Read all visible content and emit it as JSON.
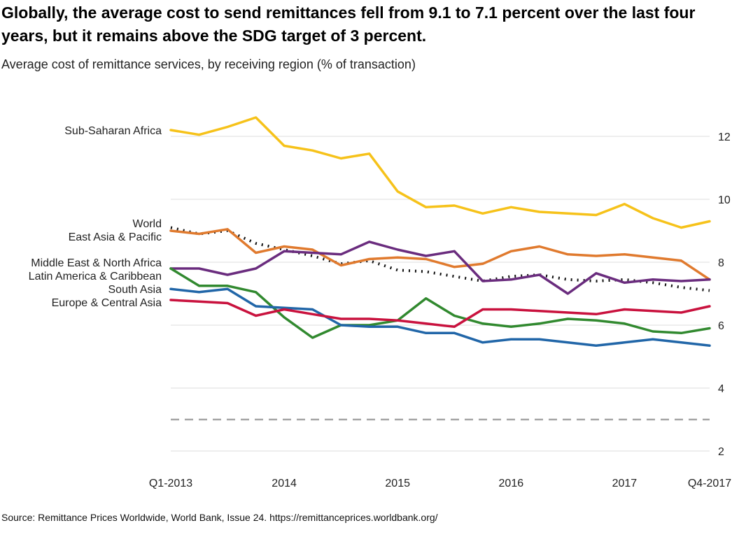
{
  "title": "Globally, the average cost to send remittances fell from 9.1 to 7.1 percent over the last four years, but it remains above the SDG target of 3 percent.",
  "subtitle": "Average cost of remittance services, by receiving region (% of transaction)",
  "source": "Source: Remittance Prices Worldwide, World Bank, Issue 24. https://remittanceprices.worldbank.org/",
  "chart_data": {
    "type": "line",
    "grid": "horizontal",
    "y_axis_position": "right",
    "ylim": [
      2,
      13
    ],
    "yticks": [
      2,
      4,
      6,
      8,
      10,
      12
    ],
    "x": [
      "Q1-2013",
      "Q2-2013",
      "Q3-2013",
      "Q4-2013",
      "Q1-2014",
      "Q2-2014",
      "Q3-2014",
      "Q4-2014",
      "Q1-2015",
      "Q2-2015",
      "Q3-2015",
      "Q4-2015",
      "Q1-2016",
      "Q2-2016",
      "Q3-2016",
      "Q4-2016",
      "Q1-2017",
      "Q2-2017",
      "Q3-2017",
      "Q4-2017"
    ],
    "xtick_labels": [
      {
        "index": 0,
        "label": "Q1-2013"
      },
      {
        "index": 4,
        "label": "2014"
      },
      {
        "index": 8,
        "label": "2015"
      },
      {
        "index": 12,
        "label": "2016"
      },
      {
        "index": 16,
        "label": "2017"
      },
      {
        "index": 19,
        "label": "Q4-2017"
      }
    ],
    "series": [
      {
        "name": "Sub-Saharan Africa",
        "color": "#F6C21A",
        "style": "solid",
        "values": [
          12.2,
          12.05,
          12.3,
          12.6,
          11.7,
          11.55,
          11.3,
          11.45,
          10.25,
          9.75,
          9.8,
          9.55,
          9.75,
          9.6,
          9.55,
          9.5,
          9.85,
          9.4,
          9.1,
          9.3
        ]
      },
      {
        "name": "World",
        "color": "#111111",
        "style": "dotted",
        "values": [
          9.1,
          8.9,
          9.0,
          8.6,
          8.4,
          8.2,
          7.95,
          8.05,
          7.75,
          7.7,
          7.55,
          7.4,
          7.55,
          7.6,
          7.45,
          7.4,
          7.45,
          7.35,
          7.2,
          7.1
        ]
      },
      {
        "name": "East Asia & Pacific",
        "color": "#E07A2E",
        "style": "solid",
        "values": [
          9.0,
          8.9,
          9.05,
          8.3,
          8.5,
          8.4,
          7.9,
          8.1,
          8.15,
          8.1,
          7.85,
          7.95,
          8.35,
          8.5,
          8.25,
          8.2,
          8.25,
          8.15,
          8.05,
          7.45
        ]
      },
      {
        "name": "Middle East & North Africa",
        "color": "#6A2C7E",
        "style": "solid",
        "values": [
          7.8,
          7.8,
          7.6,
          7.8,
          8.35,
          8.3,
          8.25,
          8.65,
          8.4,
          8.2,
          8.35,
          7.4,
          7.45,
          7.6,
          7.0,
          7.65,
          7.35,
          7.45,
          7.4,
          7.45
        ]
      },
      {
        "name": "Latin America & Caribbean",
        "color": "#31892F",
        "style": "solid",
        "values": [
          7.8,
          7.25,
          7.25,
          7.05,
          6.25,
          5.6,
          6.0,
          6.0,
          6.15,
          6.85,
          6.3,
          6.05,
          5.95,
          6.05,
          6.2,
          6.15,
          6.05,
          5.8,
          5.75,
          5.9
        ]
      },
      {
        "name": "South Asia",
        "color": "#2166A8",
        "style": "solid",
        "values": [
          7.15,
          7.05,
          7.15,
          6.6,
          6.55,
          6.5,
          6.0,
          5.95,
          5.95,
          5.75,
          5.75,
          5.45,
          5.55,
          5.55,
          5.45,
          5.35,
          5.45,
          5.55,
          5.45,
          5.35
        ]
      },
      {
        "name": "Europe & Central Asia",
        "color": "#C9123E",
        "style": "solid",
        "values": [
          6.8,
          6.75,
          6.7,
          6.3,
          6.5,
          6.35,
          6.2,
          6.2,
          6.15,
          6.05,
          5.95,
          6.5,
          6.5,
          6.45,
          6.4,
          6.35,
          6.5,
          6.45,
          6.4,
          6.6
        ]
      }
    ],
    "reference_line": {
      "label": "",
      "value": 3,
      "color": "#A6A6A6",
      "style": "dashed"
    }
  }
}
